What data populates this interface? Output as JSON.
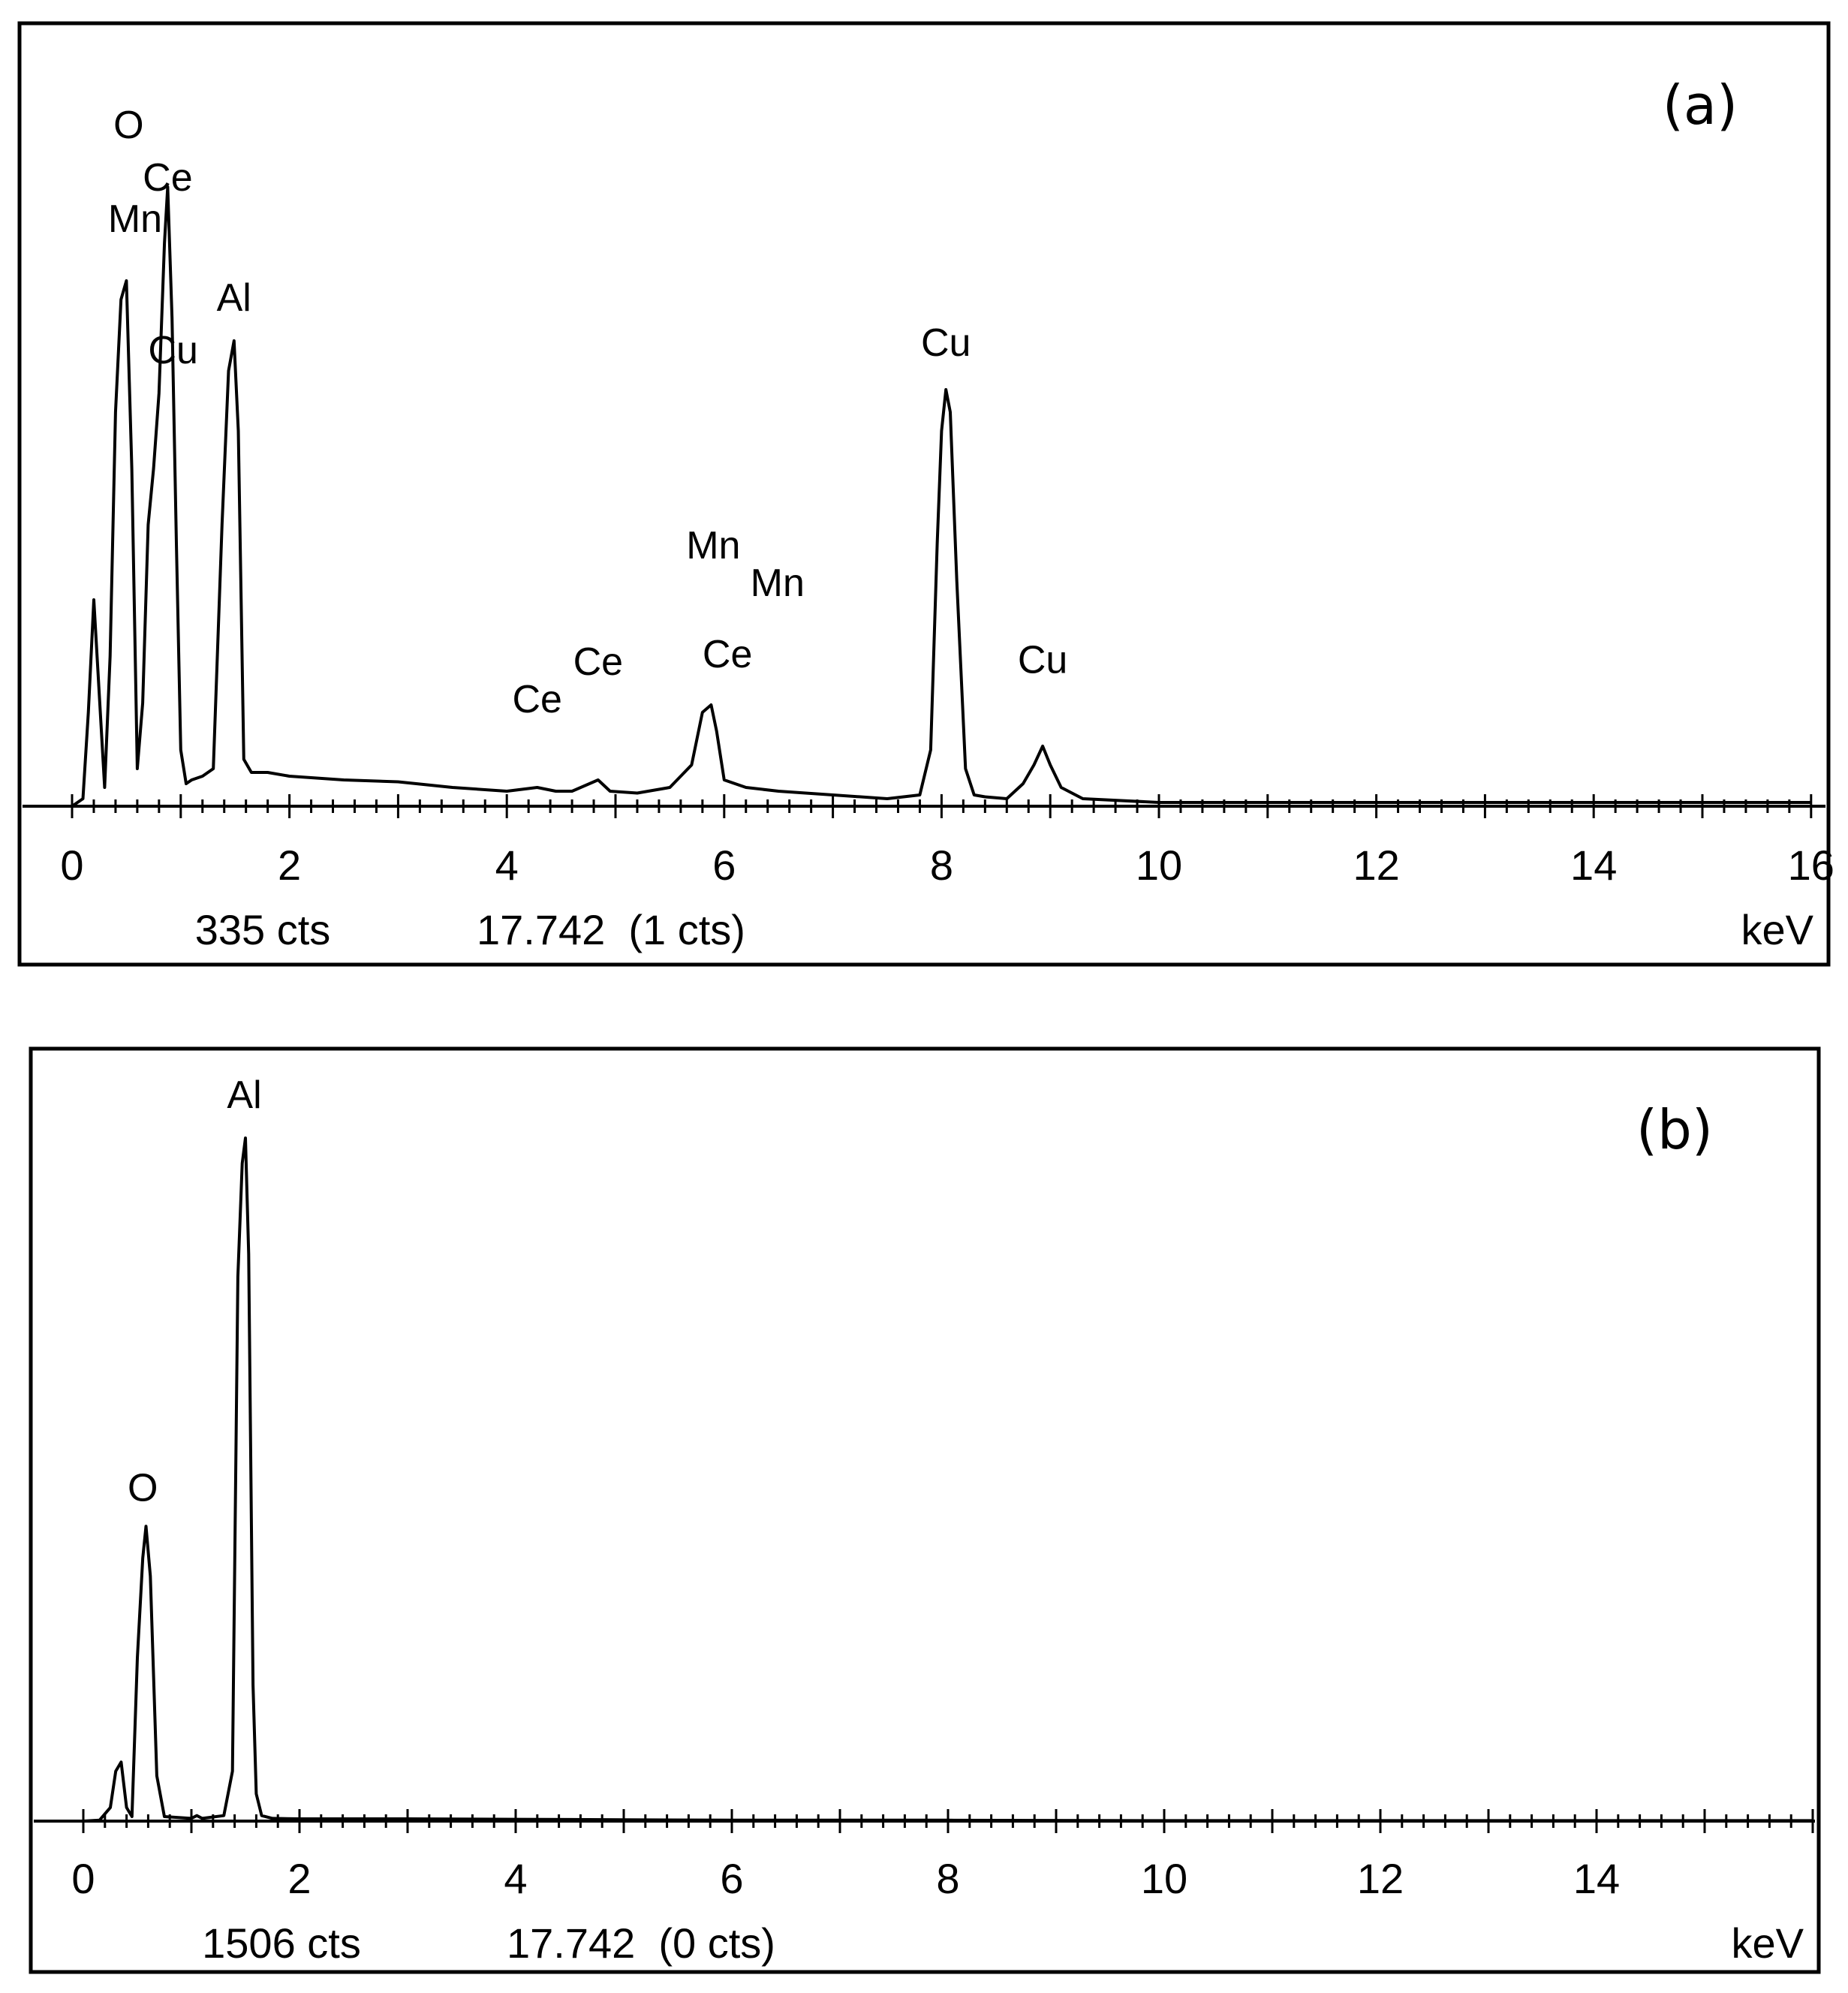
{
  "chart_data": [
    {
      "type": "line",
      "panel_label": "(a)",
      "xlabel": "keV",
      "xlim": [
        0,
        16
      ],
      "x_ticks": [
        "0",
        "2",
        "4",
        "6",
        "8",
        "10",
        "12",
        "14",
        "16"
      ],
      "status": {
        "counts": "335 cts",
        "cursor": "17.742  (1 cts)"
      },
      "peak_labels": [
        {
          "text": "O",
          "x": 0.52,
          "y": 340
        },
        {
          "text": "Ce",
          "x": 0.88,
          "y": 312
        },
        {
          "text": "Mn",
          "x": 0.58,
          "y": 290
        },
        {
          "text": "Cu",
          "x": 0.93,
          "y": 220
        },
        {
          "text": "Al",
          "x": 1.49,
          "y": 248
        },
        {
          "text": "Cu",
          "x": 8.04,
          "y": 224
        },
        {
          "text": "Mn",
          "x": 5.9,
          "y": 116
        },
        {
          "text": "Mn",
          "x": 6.49,
          "y": 96
        },
        {
          "text": "Ce",
          "x": 4.84,
          "y": 54
        },
        {
          "text": "Ce",
          "x": 6.03,
          "y": 58
        },
        {
          "text": "Ce",
          "x": 4.28,
          "y": 34
        },
        {
          "text": "Cu",
          "x": 8.93,
          "y": 55
        }
      ],
      "series": [
        {
          "x": [
            0.0,
            0.1,
            0.15,
            0.2,
            0.25,
            0.3,
            0.35,
            0.4,
            0.45,
            0.5,
            0.55,
            0.6,
            0.65,
            0.7,
            0.75,
            0.8,
            0.85,
            0.88,
            0.92,
            0.96,
            1.0,
            1.05,
            1.1,
            1.2,
            1.3,
            1.38,
            1.44,
            1.49,
            1.53,
            1.58,
            1.65,
            1.8,
            2.0,
            2.5,
            3.0,
            3.5,
            4.0,
            4.28,
            4.45,
            4.6,
            4.84,
            4.95,
            5.2,
            5.5,
            5.7,
            5.8,
            5.88,
            5.93,
            6.0,
            6.2,
            6.5,
            7.0,
            7.5,
            7.8,
            7.9,
            7.96,
            8.0,
            8.04,
            8.08,
            8.14,
            8.22,
            8.3,
            8.4,
            8.6,
            8.75,
            8.85,
            8.93,
            9.0,
            9.1,
            9.3,
            10.0,
            11.0,
            12.0,
            12.5,
            13.0,
            14.0,
            15.0,
            16.0
          ],
          "y": [
            0,
            4,
            50,
            110,
            60,
            10,
            80,
            210,
            270,
            280,
            180,
            20,
            55,
            150,
            180,
            220,
            300,
            330,
            260,
            140,
            30,
            12,
            14,
            16,
            20,
            150,
            232,
            248,
            200,
            25,
            18,
            18,
            16,
            14,
            13,
            10,
            8,
            10,
            8,
            8,
            14,
            8,
            7,
            10,
            22,
            50,
            54,
            40,
            14,
            10,
            8,
            6,
            4,
            6,
            30,
            140,
            200,
            222,
            210,
            120,
            20,
            6,
            5,
            4,
            12,
            22,
            32,
            22,
            10,
            4,
            2,
            2,
            2,
            2,
            2,
            2,
            2,
            2
          ]
        }
      ]
    },
    {
      "type": "line",
      "panel_label": "(b)",
      "xlabel": "keV",
      "xlim": [
        0,
        16
      ],
      "x_ticks": [
        "0",
        "2",
        "4",
        "6",
        "8",
        "10",
        "12",
        "14"
      ],
      "status": {
        "counts": "1506 cts",
        "cursor": "17.742  (0 cts)"
      },
      "peak_labels": [
        {
          "text": "Al",
          "x": 1.49,
          "y": 1506
        },
        {
          "text": "O",
          "x": 0.55,
          "y": 640
        }
      ],
      "series": [
        {
          "x": [
            0.0,
            0.15,
            0.25,
            0.3,
            0.35,
            0.4,
            0.45,
            0.5,
            0.55,
            0.58,
            0.62,
            0.68,
            0.75,
            1.0,
            1.05,
            1.1,
            1.3,
            1.38,
            1.43,
            1.47,
            1.5,
            1.53,
            1.57,
            1.6,
            1.65,
            1.75,
            2.0,
            3.0,
            4.0,
            5.0,
            6.0,
            8.0,
            10.0,
            12.0,
            14.0,
            16.0
          ],
          "y": [
            0,
            2,
            30,
            110,
            130,
            30,
            10,
            360,
            580,
            650,
            540,
            100,
            10,
            6,
            12,
            6,
            12,
            110,
            1200,
            1450,
            1506,
            1250,
            300,
            60,
            12,
            6,
            5,
            5,
            4,
            3,
            2,
            2,
            1,
            1,
            1,
            1
          ]
        }
      ]
    }
  ]
}
